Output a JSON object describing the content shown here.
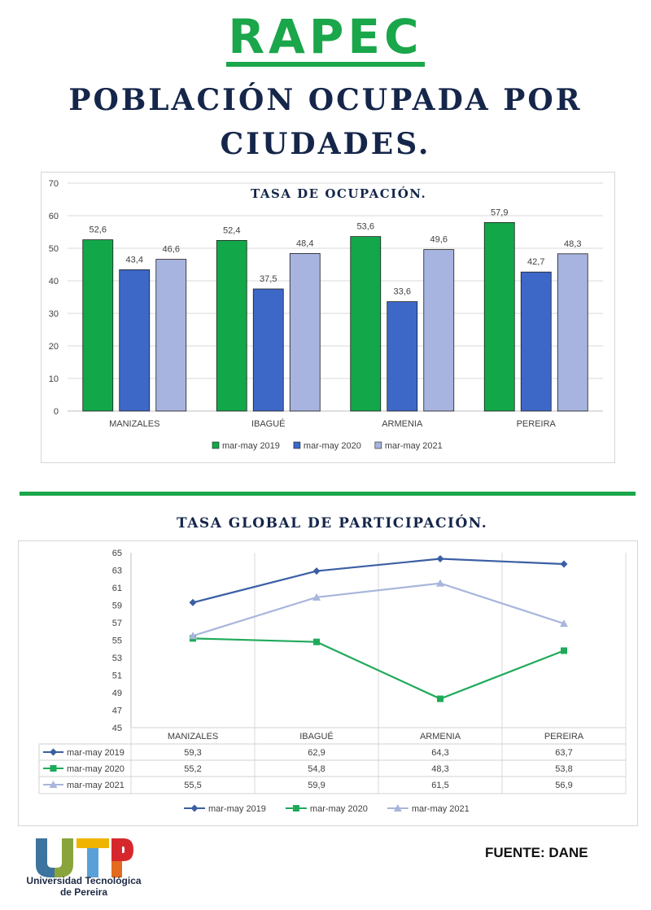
{
  "header": {
    "brand": "RAPEC",
    "title_line1": "POBLACIÓN OCUPADA POR",
    "title_line2": "CIUDADES."
  },
  "colors": {
    "green": "#1aa64a",
    "navy": "#15264a",
    "series_2019_bar": "#12a84a",
    "series_2020_bar": "#3d68c8",
    "series_2021_bar": "#a7b4df",
    "line_2019": "#3b5fa4",
    "line_2020": "#1faa5a",
    "line_2021": "#a8b6dc"
  },
  "chart_data": [
    {
      "type": "bar",
      "title": "TASA DE OCUPACIÓN.",
      "categories": [
        "MANIZALES",
        "IBAGUÉ",
        "ARMENIA",
        "PEREIRA"
      ],
      "series": [
        {
          "name": "mar-may 2019",
          "values": [
            52.6,
            52.4,
            53.6,
            57.9
          ],
          "labels": [
            "52,6",
            "52,4",
            "53,6",
            "57,9"
          ]
        },
        {
          "name": "mar-may 2020",
          "values": [
            43.4,
            37.5,
            33.6,
            42.7
          ],
          "labels": [
            "43,4",
            "37,5",
            "33,6",
            "42,7"
          ]
        },
        {
          "name": "mar-may 2021",
          "values": [
            46.6,
            48.4,
            49.6,
            48.3
          ],
          "labels": [
            "46,6",
            "48,4",
            "49,6",
            "48,3"
          ]
        }
      ],
      "ylim": [
        0,
        70
      ],
      "yticks": [
        "0",
        "10",
        "20",
        "30",
        "40",
        "50",
        "60",
        "70"
      ],
      "grid": true,
      "legend": "bottom"
    },
    {
      "type": "line",
      "title": "TASA GLOBAL DE PARTICIPACIÓN.",
      "categories": [
        "MANIZALES",
        "IBAGUÉ",
        "ARMENIA",
        "PEREIRA"
      ],
      "series": [
        {
          "name": "mar-may 2019",
          "marker": "diamond",
          "values": [
            59.3,
            62.9,
            64.3,
            63.7
          ],
          "labels": [
            "59,3",
            "62,9",
            "64,3",
            "63,7"
          ]
        },
        {
          "name": "mar-may 2020",
          "marker": "square",
          "values": [
            55.2,
            54.8,
            48.3,
            53.8
          ],
          "labels": [
            "55,2",
            "54,8",
            "48,3",
            "53,8"
          ]
        },
        {
          "name": "mar-may 2021",
          "marker": "triangle",
          "values": [
            55.5,
            59.9,
            61.5,
            56.9
          ],
          "labels": [
            "55,5",
            "59,9",
            "61,5",
            "56,9"
          ]
        }
      ],
      "ylim": [
        45,
        65
      ],
      "yticks": [
        "45",
        "47",
        "49",
        "51",
        "53",
        "55",
        "57",
        "59",
        "61",
        "63",
        "65"
      ],
      "grid": true,
      "data_table": true,
      "legend": "bottom"
    }
  ],
  "footer": {
    "logo_text_line1": "Universidad Tecnológica",
    "logo_text_line2": "de Pereira",
    "source": "FUENTE: DANE"
  }
}
